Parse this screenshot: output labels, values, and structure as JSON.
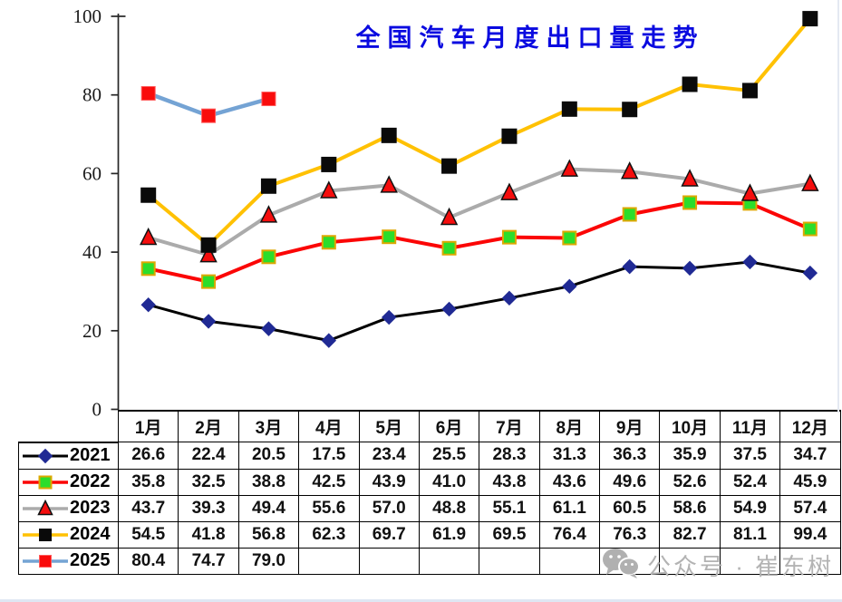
{
  "title": "全国汽车月度出口量走势",
  "colors": {
    "title": "#0a0ae0",
    "axis": "#262626",
    "table_border": "#000000",
    "watermark": "#b3b3b3"
  },
  "watermark": {
    "icon": "wechat-icon",
    "label": "公众号 · 崔东树"
  },
  "chart_data": {
    "type": "line",
    "title": "全国汽车月度出口量走势",
    "categories": [
      "1月",
      "2月",
      "3月",
      "4月",
      "5月",
      "6月",
      "7月",
      "8月",
      "9月",
      "10月",
      "11月",
      "12月"
    ],
    "y_axis": {
      "min": 0,
      "max": 100,
      "step": 20,
      "tick_labels": [
        "0",
        "20",
        "40",
        "60",
        "80",
        "100"
      ]
    },
    "grid": false,
    "legend_position": "table-left",
    "series": [
      {
        "name": "2021",
        "line_color": "#000000",
        "line_width": 3,
        "marker": {
          "shape": "diamond",
          "fill": "#202a94",
          "stroke": "#202a94",
          "stroke_width": 1,
          "size": 13
        },
        "values": [
          26.6,
          22.4,
          20.5,
          17.5,
          23.4,
          25.5,
          28.3,
          31.3,
          36.3,
          35.9,
          37.5,
          34.7
        ]
      },
      {
        "name": "2022",
        "line_color": "#fb0606",
        "line_width": 4,
        "marker": {
          "shape": "square",
          "fill": "#2bdd2b",
          "stroke": "#dda800",
          "stroke_width": 2,
          "size": 14
        },
        "values": [
          35.8,
          32.5,
          38.8,
          42.5,
          43.9,
          41.0,
          43.8,
          43.6,
          49.6,
          52.6,
          52.4,
          45.9
        ]
      },
      {
        "name": "2023",
        "line_color": "#ababab",
        "line_width": 4,
        "marker": {
          "shape": "triangle",
          "fill": "#f50d0d",
          "stroke": "#111111",
          "stroke_width": 1.5,
          "size": 15
        },
        "values": [
          43.7,
          39.3,
          49.4,
          55.6,
          57.0,
          48.8,
          55.1,
          61.1,
          60.5,
          58.6,
          54.9,
          57.4
        ]
      },
      {
        "name": "2024",
        "line_color": "#ffc103",
        "line_width": 4,
        "marker": {
          "shape": "square",
          "fill": "#0a0a0a",
          "stroke": "#0a0a0a",
          "stroke_width": 1,
          "size": 16
        },
        "values": [
          54.5,
          41.8,
          56.8,
          62.3,
          69.7,
          61.9,
          69.5,
          76.4,
          76.3,
          82.7,
          81.1,
          99.4
        ]
      },
      {
        "name": "2025",
        "line_color": "#74a3d4",
        "line_width": 4.5,
        "marker": {
          "shape": "square",
          "fill": "#f90c0c",
          "stroke": "#ff5c5c",
          "stroke_width": 1,
          "size": 15
        },
        "values": [
          80.4,
          74.7,
          79.0,
          null,
          null,
          null,
          null,
          null,
          null,
          null,
          null,
          null
        ]
      }
    ]
  }
}
